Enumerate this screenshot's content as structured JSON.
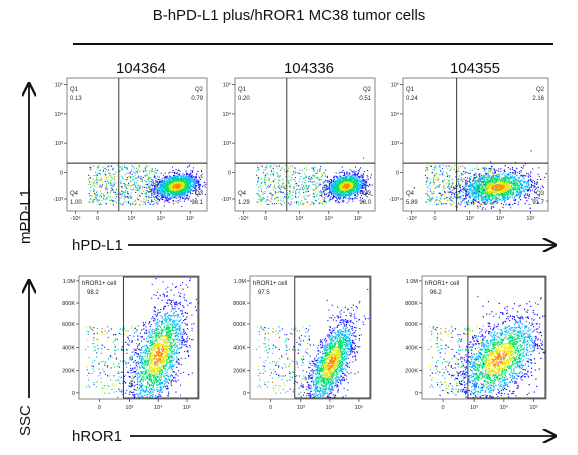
{
  "title": "B-hPD-L1 plus/hROR1 MC38 tumor cells",
  "samples": [
    "104364",
    "104336",
    "104355"
  ],
  "row1": {
    "y_axis_label": "mPD-L1",
    "x_axis_label": "hPD-L1",
    "y_ticks": [
      "10⁵",
      "10⁴",
      "10³",
      "0",
      "-10³"
    ],
    "x_ticks": [
      "-10³",
      "0",
      "10³",
      "10⁴",
      "10⁵"
    ],
    "quadrant_names": [
      "Q1",
      "Q2",
      "Q3",
      "Q4"
    ],
    "panels": [
      {
        "q1": "0.13",
        "q2": "0.79",
        "q3": "98.1",
        "q4": "1.00"
      },
      {
        "q1": "0.20",
        "q2": "0.51",
        "q3": "98.0",
        "q4": "1.29"
      },
      {
        "q1": "0.24",
        "q2": "2.16",
        "q3": "91.7",
        "q4": "5.89"
      }
    ]
  },
  "row2": {
    "y_axis_label": "SSC",
    "x_axis_label": "hROR1",
    "y_ticks": [
      "1.0M",
      "800K",
      "600K",
      "400K",
      "200K",
      "0"
    ],
    "x_ticks": [
      "0",
      "10³",
      "10⁴",
      "10⁵"
    ],
    "gate_name": "hROR1+ cell",
    "panels": [
      {
        "gate_value": "98.2"
      },
      {
        "gate_value": "97.5"
      },
      {
        "gate_value": "96.2"
      }
    ]
  }
}
